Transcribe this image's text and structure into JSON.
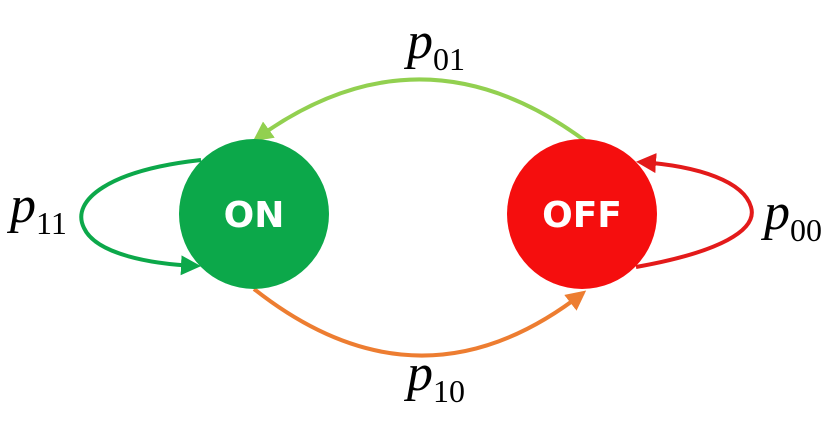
{
  "states": {
    "on": {
      "label": "ON",
      "color": "#0ca84a"
    },
    "off": {
      "label": "OFF",
      "color": "#f50e0e"
    }
  },
  "transitions": {
    "p01": {
      "symbol": "p",
      "subscript": "01",
      "from": "OFF",
      "to": "ON",
      "color": "#92d050"
    },
    "p10": {
      "symbol": "p",
      "subscript": "10",
      "from": "ON",
      "to": "OFF",
      "color": "#ed7d31"
    },
    "p11": {
      "symbol": "p",
      "subscript": "11",
      "from": "ON",
      "to": "ON",
      "color": "#0ca84a"
    },
    "p00": {
      "symbol": "p",
      "subscript": "00",
      "from": "OFF",
      "to": "OFF",
      "color": "#e31a1a"
    }
  }
}
